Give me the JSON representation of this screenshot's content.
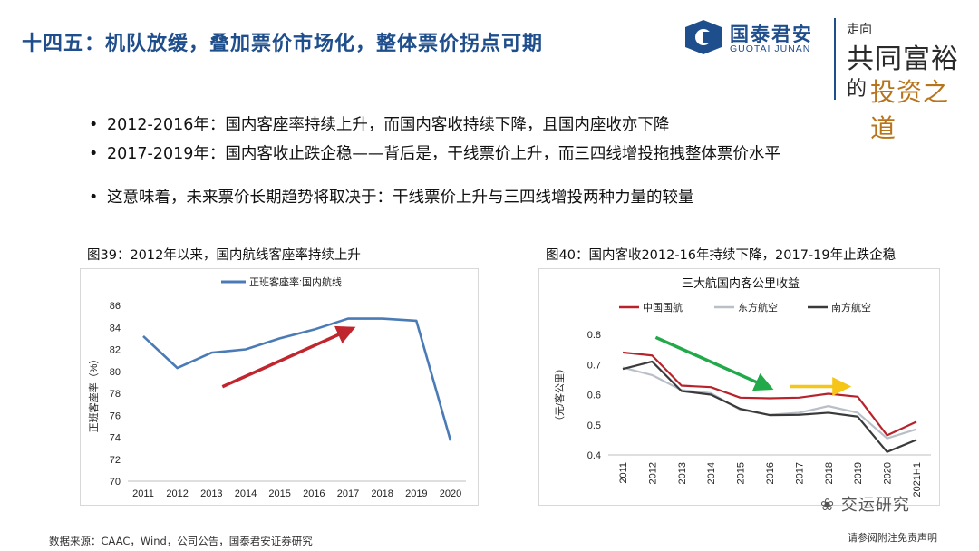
{
  "header": {
    "title": "十四五：机队放缓，叠加票价市场化，整体票价拐点可期",
    "brand_cn": "国泰君安",
    "brand_en": "GUOTAI JUNAN",
    "slogan": {
      "line1": "走向",
      "line2": "共同富裕",
      "line3": "的",
      "line4": "投资之道"
    }
  },
  "bullets": [
    "2012-2016年：国内客座率持续上升，而国内客收持续下降，且国内座收亦下降",
    "2017-2019年：国内客收止跌企稳——背后是，干线票价上升，而三四线增投拖拽整体票价水平",
    "这意味着，未来票价长期趋势将取决于：干线票价上升与三四线增投两种力量的较量"
  ],
  "figure_captions": {
    "left": "图39：2012年以来，国内航线客座率持续上升",
    "right": "图40：国内客收2012-16年持续下降，2017-19年止跌企稳"
  },
  "chart_data": [
    {
      "type": "line",
      "title": "",
      "legend": [
        "正班客座率:国内航线"
      ],
      "legend_position": "top",
      "ylabel": "正班客座率（%）",
      "xlabel": "",
      "ylim": [
        70,
        86
      ],
      "yticks": [
        70,
        72,
        74,
        76,
        78,
        80,
        82,
        84,
        86
      ],
      "x": [
        "2011",
        "2012",
        "2013",
        "2014",
        "2015",
        "2016",
        "2017",
        "2018",
        "2019",
        "2020"
      ],
      "series": [
        {
          "name": "正班客座率:国内航线",
          "color": "#4a7bb7",
          "values": [
            83.2,
            80.3,
            81.7,
            82.0,
            83.0,
            83.8,
            84.8,
            84.8,
            84.6,
            73.7
          ]
        }
      ],
      "annotations": [
        {
          "type": "arrow",
          "color": "#c0262d",
          "from": "2013",
          "to": "2017",
          "direction": "up"
        }
      ]
    },
    {
      "type": "line",
      "title": "三大航国内客公里收益",
      "legend": [
        "中国国航",
        "东方航空",
        "南方航空"
      ],
      "legend_position": "top",
      "ylabel": "（元/客公里）",
      "xlabel": "",
      "ylim": [
        0.4,
        0.8
      ],
      "yticks": [
        0.4,
        0.5,
        0.6,
        0.7,
        0.8
      ],
      "x": [
        "2011",
        "2012",
        "2013",
        "2014",
        "2015",
        "2016",
        "2017",
        "2018",
        "2019",
        "2020",
        "2021H1"
      ],
      "series": [
        {
          "name": "中国国航",
          "color": "#b8232b",
          "values": [
            0.74,
            0.73,
            0.63,
            0.625,
            0.59,
            0.588,
            0.59,
            0.603,
            0.593,
            0.465,
            0.51
          ]
        },
        {
          "name": "东方航空",
          "color": "#b9bfc8",
          "values": [
            0.69,
            0.665,
            0.615,
            0.605,
            0.55,
            0.533,
            0.54,
            0.562,
            0.54,
            0.455,
            0.485
          ]
        },
        {
          "name": "南方航空",
          "color": "#3a3a3a",
          "values": [
            0.685,
            0.71,
            0.612,
            0.6,
            0.553,
            0.532,
            0.533,
            0.54,
            0.527,
            0.41,
            0.45
          ]
        }
      ],
      "annotations": [
        {
          "type": "arrow",
          "color": "#22a94a",
          "from": "2012",
          "to": "2016",
          "direction": "down"
        },
        {
          "type": "arrow",
          "color": "#f5c518",
          "from": "2017",
          "to": "2019",
          "direction": "flat"
        }
      ]
    }
  ],
  "footer": {
    "source": "数据来源：CAAC，Wind，公司公告，国泰君安证券研究",
    "disclaimer": "请参阅附注免责声明",
    "watermark": "交运研究"
  }
}
